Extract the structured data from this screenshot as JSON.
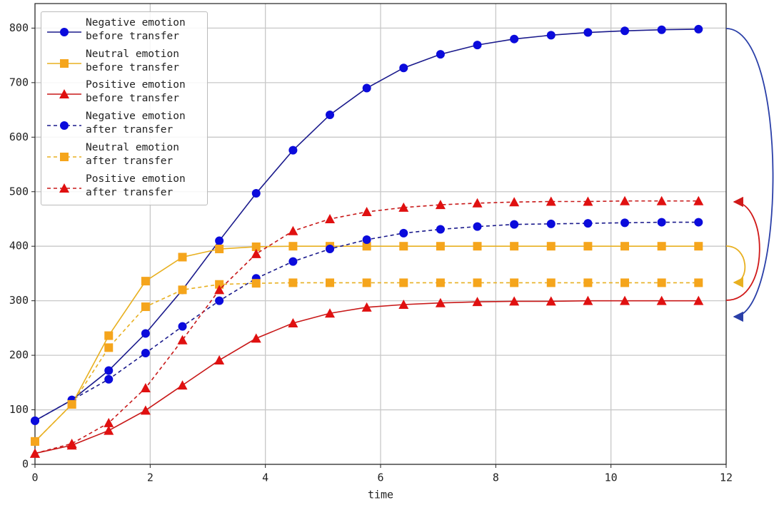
{
  "chart_data": {
    "type": "line",
    "x": [
      0,
      0.64,
      1.28,
      1.92,
      2.56,
      3.2,
      3.84,
      4.48,
      5.12,
      5.76,
      6.4,
      7.04,
      7.68,
      8.32,
      8.96,
      9.6,
      10.24,
      10.88,
      11.52
    ],
    "xlabel": "time",
    "xlim": [
      0,
      12
    ],
    "xticks": [
      0,
      2,
      4,
      6,
      8,
      10,
      12
    ],
    "ylim": [
      0,
      845
    ],
    "yticks": [
      0,
      100,
      200,
      300,
      400,
      500,
      600,
      700,
      800
    ],
    "grid": true,
    "legend": "upper left",
    "series": [
      {
        "name": "Negative emotion\nbefore transfer",
        "color": "#0b0bdc",
        "line_color": "#1a1a8c",
        "linestyle": "solid",
        "marker": "circle",
        "values": [
          80,
          118,
          172,
          240,
          320,
          410,
          497,
          576,
          641,
          690,
          727,
          752,
          769,
          780,
          787,
          792,
          795,
          797,
          798
        ]
      },
      {
        "name": "Neutral emotion\nbefore transfer",
        "color": "#f5a51c",
        "line_color": "#e8b020",
        "linestyle": "solid",
        "marker": "square",
        "values": [
          42,
          110,
          236,
          336,
          380,
          395,
          399,
          400,
          400,
          400,
          400,
          400,
          400,
          400,
          400,
          400,
          400,
          400,
          400
        ]
      },
      {
        "name": "Positive emotion\nbefore transfer",
        "color": "#e01010",
        "line_color": "#c81818",
        "linestyle": "solid",
        "marker": "triangle",
        "values": [
          20,
          35,
          62,
          99,
          145,
          191,
          231,
          259,
          277,
          288,
          293,
          296,
          298,
          299,
          299,
          300,
          300,
          300,
          300
        ]
      },
      {
        "name": "Negative emotion\nafter transfer",
        "color": "#0b0bdc",
        "line_color": "#1a1a8c",
        "linestyle": "dashed",
        "marker": "circle",
        "values": [
          80,
          118,
          156,
          204,
          253,
          300,
          341,
          372,
          395,
          412,
          424,
          431,
          436,
          440,
          441,
          442,
          443,
          444,
          444
        ]
      },
      {
        "name": "Neutral emotion\nafter transfer",
        "color": "#f5a51c",
        "line_color": "#e8b020",
        "linestyle": "dashed",
        "marker": "square",
        "values": [
          42,
          110,
          214,
          289,
          320,
          330,
          332,
          333,
          333,
          333,
          333,
          333,
          333,
          333,
          333,
          333,
          333,
          333,
          333
        ]
      },
      {
        "name": "Positive emotion\nafter transfer",
        "color": "#e01010",
        "line_color": "#c81818",
        "linestyle": "dashed",
        "marker": "triangle",
        "values": [
          20,
          38,
          76,
          140,
          228,
          320,
          386,
          428,
          450,
          463,
          471,
          476,
          479,
          481,
          482,
          482,
          483,
          483,
          483
        ]
      }
    ]
  }
}
